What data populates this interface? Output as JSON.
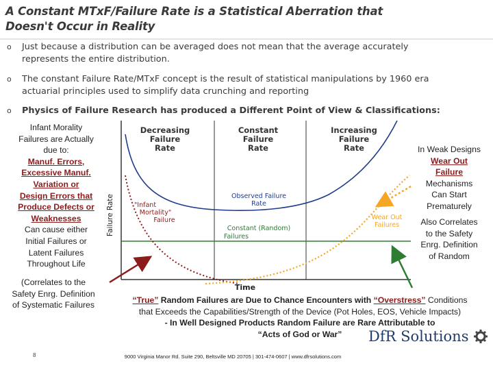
{
  "title_line1": "A Constant MTxF/Failure Rate is a Statistical Aberration that",
  "title_line2": "Doesn't Occur in Reality",
  "bullets": [
    {
      "line1": "Just because a distribution can be averaged does not mean that the average accurately",
      "line2": "represents the entire distribution."
    },
    {
      "line1": "The constant Failure Rate/MTxF concept is the result of statistical manipulations by 1960 era",
      "line2": "actuarial principles used to simplify data crunching and reporting"
    },
    {
      "line1": "Physics of Failure Research has produced a Different Point of View & Classifications:",
      "line2": ""
    }
  ],
  "bullet_marker": "o",
  "chart": {
    "headers": [
      "Decreasing Failure Rate",
      "Constant Failure Rate",
      "Increasing Failure Rate"
    ],
    "header_lines": [
      [
        "Decreasing",
        "Failure",
        "Rate"
      ],
      [
        "Constant",
        "Failure",
        "Rate"
      ],
      [
        "Increasing",
        "Failure",
        "Rate"
      ]
    ],
    "y_label": "Failure Rate",
    "x_label": "Time",
    "observed": [
      "Observed Failure",
      "Rate"
    ],
    "infant": [
      "\"Infant",
      "Mortality\"",
      "Failure"
    ],
    "constant": [
      "Constant (Random)",
      "Failures"
    ],
    "wearout": [
      "Wear Out",
      "Failures"
    ]
  },
  "left_note": {
    "l1": "Infant Morality",
    "l2": "Failures are Actually",
    "l3": "due to:",
    "r1": "Manuf. Errors,",
    "r2": "Excessive Manuf.",
    "r3": "Variation or",
    "r4": "Design Errors that",
    "r5": "Produce Defects or",
    "r6": "Weaknesses",
    "c1": "Can cause either",
    "c2": "Initial Failures or",
    "c3": "Latent Failures",
    "c4": "Throughout Life",
    "d1": "(Correlates to the",
    "d2": "Safety Enrg. Definition",
    "d3": "of Systematic Failures"
  },
  "right_note": {
    "l1": "In Weak Designs",
    "r1": "Wear Out",
    "r2": "Failure",
    "l2": "Mechanisms",
    "l3": "Can Start",
    "l4": "Prematurely",
    "a1": "Also Correlates",
    "a2": "to the Safety",
    "a3": "Enrg. Definition",
    "a4": "of Random"
  },
  "bottom": {
    "true_label": "“True”",
    "p1": " Random Failures are Due to Chance Encounters with ",
    "overstress": "“Overstress”",
    "p2": " Conditions",
    "line2": "that Exceeds the Capabilities/Strength of the Device (Pot Holes, EOS, Vehicle Impacts)",
    "line3": "- In Well Designed Products Random Failure are Rare Attributable to",
    "line4": "“Acts of God or War”"
  },
  "logo": "DfR Solutions",
  "footer": "9000 Virginia Manor Rd. Suite 290, Beltsville MD 20705 | 301-474-0607 | www.dfrsolutions.com",
  "page_number": "8",
  "colors": {
    "red": "#8b1c1c",
    "blue": "#1f3c8c",
    "green": "#2e7d32",
    "orange": "#f5a623",
    "title": "#3a3a3a"
  }
}
